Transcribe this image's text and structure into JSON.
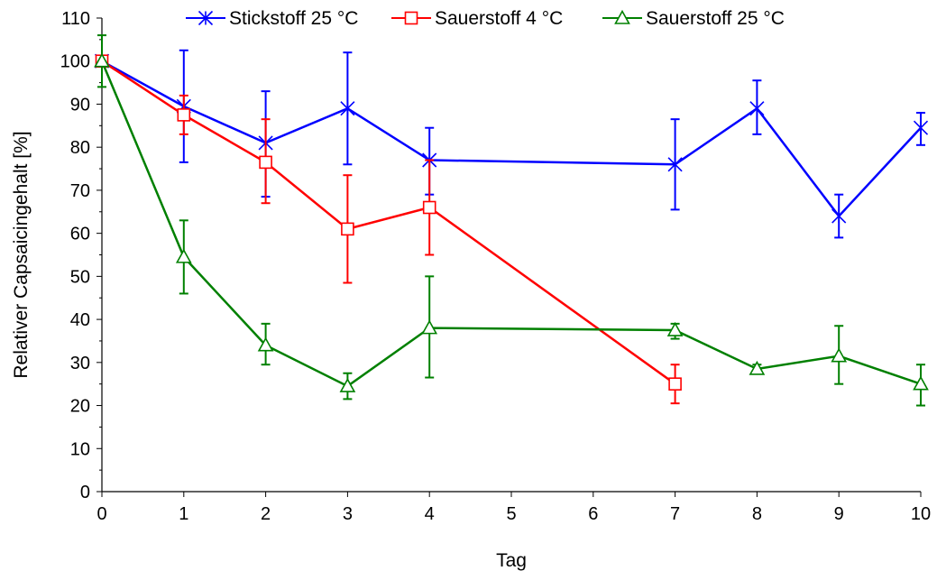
{
  "chart_data": {
    "type": "line",
    "title": "",
    "xlabel": "Tag",
    "ylabel": "Relativer Capsaicingehalt [%]",
    "xlim": [
      0,
      10
    ],
    "ylim": [
      0,
      110
    ],
    "x_ticks": [
      "0",
      "1",
      "2",
      "3",
      "4",
      "5",
      "6",
      "7",
      "8",
      "9",
      "10"
    ],
    "y_ticks": [
      "0",
      "10",
      "20",
      "30",
      "40",
      "50",
      "60",
      "70",
      "80",
      "90",
      "100",
      "110"
    ],
    "grid": false,
    "legend_position": "top",
    "series": [
      {
        "name": "Stickstoff 25 °C",
        "color": "#0000ff",
        "marker": "x-star",
        "x": [
          0,
          1,
          2,
          3,
          4,
          7,
          8,
          9,
          10
        ],
        "y": [
          100,
          89.5,
          81,
          89,
          77,
          76,
          89,
          64,
          84.5
        ],
        "err_low": [
          100,
          76.5,
          68.5,
          76,
          69,
          65.5,
          83,
          59,
          80.5
        ],
        "err_high": [
          100,
          102.5,
          93,
          102,
          84.5,
          86.5,
          95.5,
          69,
          88
        ]
      },
      {
        "name": "Sauerstoff 4 °C",
        "color": "#ff0000",
        "marker": "square",
        "x": [
          0,
          1,
          2,
          3,
          4,
          7
        ],
        "y": [
          100,
          87.5,
          76.5,
          61,
          66,
          25
        ],
        "err_low": [
          100,
          83,
          67,
          48.5,
          55,
          20.5
        ],
        "err_high": [
          100,
          92,
          86.5,
          73.5,
          77,
          29.5
        ]
      },
      {
        "name": "Sauerstoff 25 °C",
        "color": "#008000",
        "marker": "triangle",
        "x": [
          0,
          1,
          2,
          3,
          4,
          7,
          8,
          9,
          10
        ],
        "y": [
          100,
          54.5,
          34,
          24.5,
          38,
          37.5,
          28.5,
          31.5,
          25
        ],
        "err_low": [
          94,
          46,
          29.5,
          21.5,
          26.5,
          35.5,
          27.5,
          25,
          20
        ],
        "err_high": [
          106,
          63,
          39,
          27.5,
          50,
          39,
          29.5,
          38.5,
          29.5
        ]
      }
    ]
  }
}
